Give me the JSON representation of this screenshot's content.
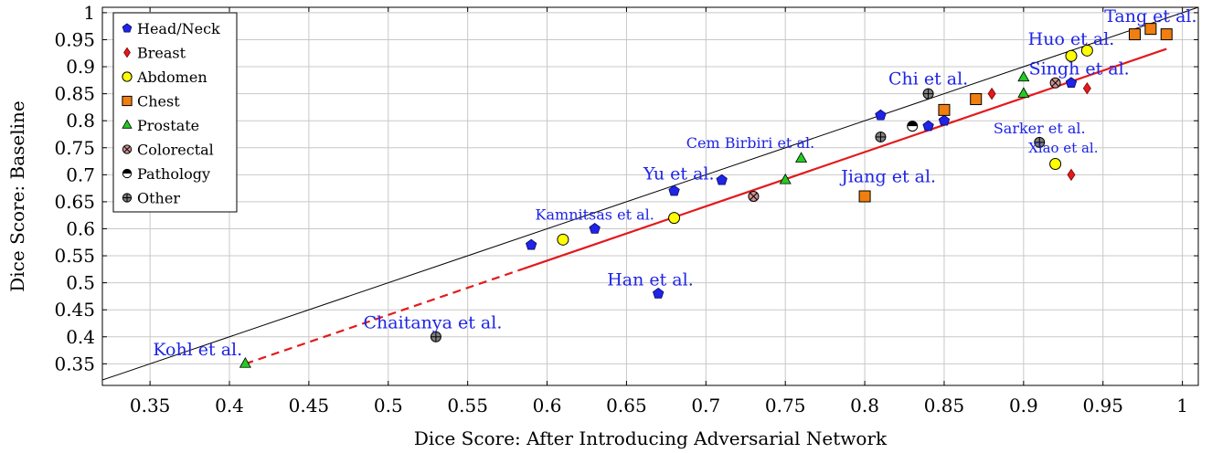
{
  "chart_data": {
    "type": "scatter",
    "xlabel": "Dice Score: After Introducing Adversarial Network",
    "ylabel": "Dice Score: Baseline",
    "xlim": [
      0.32,
      1.01
    ],
    "ylim": [
      0.31,
      1.01
    ],
    "grid": true,
    "legend_position": "top-left",
    "xticks": [
      "0.35",
      "0.4",
      "0.45",
      "0.5",
      "0.55",
      "0.6",
      "0.65",
      "0.7",
      "0.75",
      "0.8",
      "0.85",
      "0.9",
      "0.95",
      "1"
    ],
    "yticks": [
      "0.35",
      "0.4",
      "0.45",
      "0.5",
      "0.55",
      "0.6",
      "0.65",
      "0.7",
      "0.75",
      "0.8",
      "0.85",
      "0.9",
      "0.95",
      "1"
    ],
    "reference_line": {
      "type": "y=x",
      "color": "#000000"
    },
    "fit_line": {
      "x": [
        0.41,
        0.99
      ],
      "y": [
        0.35,
        0.933
      ],
      "color": "#e31a1c",
      "dashed_until_x": 0.585
    },
    "series": [
      {
        "name": "Head/Neck",
        "marker": "pentagon",
        "color": "#1f24e6",
        "points": [
          [
            0.59,
            0.57
          ],
          [
            0.63,
            0.6
          ],
          [
            0.67,
            0.48
          ],
          [
            0.68,
            0.67
          ],
          [
            0.71,
            0.69
          ],
          [
            0.81,
            0.81
          ],
          [
            0.84,
            0.79
          ],
          [
            0.85,
            0.8
          ],
          [
            0.93,
            0.87
          ]
        ]
      },
      {
        "name": "Breast",
        "marker": "diamond",
        "color": "#e31a1c",
        "points": [
          [
            0.88,
            0.85
          ],
          [
            0.93,
            0.7
          ],
          [
            0.94,
            0.86
          ]
        ]
      },
      {
        "name": "Abdomen",
        "marker": "circle",
        "color": "#ffff00",
        "points": [
          [
            0.61,
            0.58
          ],
          [
            0.68,
            0.62
          ],
          [
            0.92,
            0.72
          ],
          [
            0.93,
            0.92
          ],
          [
            0.94,
            0.93
          ]
        ]
      },
      {
        "name": "Chest",
        "marker": "square",
        "color": "#f07f0f",
        "points": [
          [
            0.8,
            0.66
          ],
          [
            0.85,
            0.82
          ],
          [
            0.87,
            0.84
          ],
          [
            0.97,
            0.96
          ],
          [
            0.98,
            0.97
          ],
          [
            0.99,
            0.96
          ]
        ]
      },
      {
        "name": "Prostate",
        "marker": "triangle",
        "color": "#22cc22",
        "points": [
          [
            0.41,
            0.35
          ],
          [
            0.75,
            0.69
          ],
          [
            0.76,
            0.73
          ],
          [
            0.9,
            0.85
          ],
          [
            0.9,
            0.88
          ]
        ]
      },
      {
        "name": "Colorectal",
        "marker": "otimes",
        "color": "#d09090",
        "points": [
          [
            0.73,
            0.66
          ],
          [
            0.92,
            0.87
          ]
        ]
      },
      {
        "name": "Pathology",
        "marker": "halfcircle",
        "color": "#000000",
        "points": [
          [
            0.83,
            0.79
          ]
        ]
      },
      {
        "name": "Other",
        "marker": "oplus",
        "color": "#808080",
        "points": [
          [
            0.53,
            0.4
          ],
          [
            0.81,
            0.77
          ],
          [
            0.84,
            0.85
          ],
          [
            0.91,
            0.76
          ]
        ]
      }
    ],
    "annotations": [
      {
        "text": "Tang et al.",
        "x": 0.98,
        "y": 0.983,
        "size": 19
      },
      {
        "text": "Huo et al.",
        "x": 0.93,
        "y": 0.941,
        "size": 19
      },
      {
        "text": "Singh et al.",
        "x": 0.935,
        "y": 0.886,
        "size": 19
      },
      {
        "text": "Chi et al.",
        "x": 0.84,
        "y": 0.867,
        "size": 19
      },
      {
        "text": "Sarker et al.",
        "x": 0.91,
        "y": 0.777,
        "size": 16
      },
      {
        "text": "Xiao et al.",
        "x": 0.925,
        "y": 0.741,
        "size": 15
      },
      {
        "text": "Cem Birbiri et al.",
        "x": 0.728,
        "y": 0.75,
        "size": 16
      },
      {
        "text": "Jiang et al.",
        "x": 0.815,
        "y": 0.686,
        "size": 19
      },
      {
        "text": "Yu et al.",
        "x": 0.683,
        "y": 0.691,
        "size": 19
      },
      {
        "text": "Kamnitsas et al.",
        "x": 0.63,
        "y": 0.617,
        "size": 16
      },
      {
        "text": "Han et al.",
        "x": 0.665,
        "y": 0.495,
        "size": 19
      },
      {
        "text": "Chaitanya et al.",
        "x": 0.528,
        "y": 0.416,
        "size": 19
      },
      {
        "text": "Kohl et al.",
        "x": 0.38,
        "y": 0.366,
        "size": 19
      }
    ]
  }
}
